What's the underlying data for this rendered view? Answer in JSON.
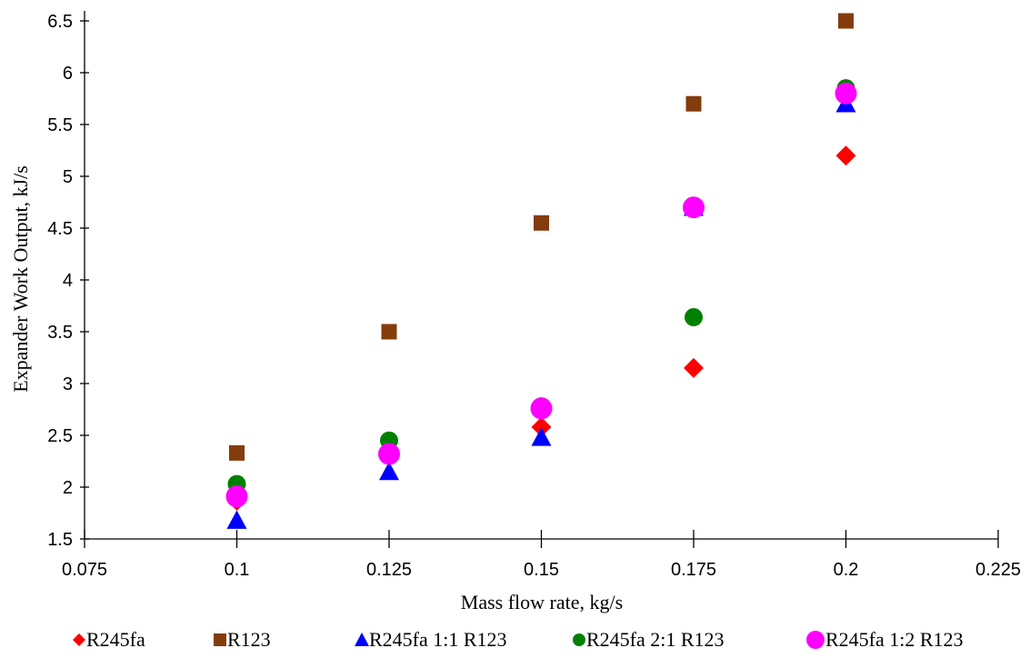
{
  "chart_data": {
    "type": "scatter",
    "title": "",
    "xlabel": "Mass flow rate, kg/s",
    "ylabel": "Expander Work Output, kJ/s",
    "xlim": [
      0.075,
      0.225
    ],
    "ylim": [
      1.5,
      6.5
    ],
    "xticks": [
      0.075,
      0.1,
      0.125,
      0.15,
      0.175,
      0.2,
      0.225
    ],
    "xtick_labels": [
      "0.075",
      "0.1",
      "0.125",
      "0.15",
      "0.175",
      "0.2",
      "0.225"
    ],
    "yticks": [
      1.5,
      2,
      2.5,
      3,
      3.5,
      4,
      4.5,
      5,
      5.5,
      6,
      6.5
    ],
    "ytick_labels": [
      "1.5",
      "2",
      "2.5",
      "3",
      "3.5",
      "4",
      "4.5",
      "5",
      "5.5",
      "6",
      "6.5"
    ],
    "grid": false,
    "legend_position": "bottom",
    "x": [
      0.1,
      0.125,
      0.15,
      0.175,
      0.2
    ],
    "series": [
      {
        "name": "R245fa",
        "marker": "diamond",
        "color": "#ff0000",
        "values": [
          1.87,
          2.32,
          2.58,
          3.15,
          5.2
        ]
      },
      {
        "name": "R123",
        "marker": "square",
        "color": "#843c0c",
        "values": [
          2.33,
          3.5,
          4.55,
          5.7,
          6.5
        ]
      },
      {
        "name": "R245fa 1:1 R123",
        "marker": "triangle",
        "color": "#0000ff",
        "values": [
          1.68,
          2.15,
          2.48,
          4.7,
          5.7
        ]
      },
      {
        "name": "R245fa 2:1 R123",
        "marker": "circle",
        "color": "#008000",
        "values": [
          2.03,
          2.45,
          2.78,
          3.64,
          5.85
        ]
      },
      {
        "name": "R245fa 1:2 R123",
        "marker": "circle-large",
        "color": "#ff00ff",
        "values": [
          1.91,
          2.32,
          2.76,
          4.7,
          5.8
        ]
      }
    ]
  }
}
